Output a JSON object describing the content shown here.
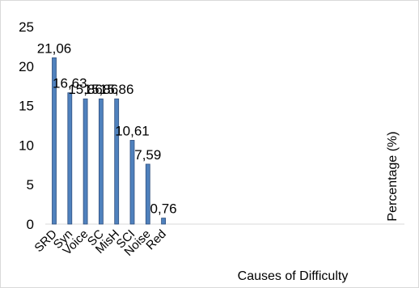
{
  "chart_data": {
    "type": "bar",
    "title": "",
    "xlabel": "Causes of Difficulty",
    "ylabel": "Percentage (%)",
    "categories": [
      "SRD",
      "Syn",
      "Voice",
      "SC",
      "MisH",
      "SCI",
      "Noise",
      "Red"
    ],
    "values": [
      21.06,
      16.63,
      15.86,
      15.86,
      15.86,
      10.61,
      7.59,
      0.76
    ],
    "data_labels": [
      "21,06",
      "16,63",
      "15,86",
      "15,86",
      "15,86",
      "10,61",
      "7,59",
      "0,76"
    ],
    "y_ticks": [
      0,
      5,
      10,
      15,
      20,
      25
    ],
    "ylim": [
      0,
      25
    ],
    "grid": false,
    "legend": "none",
    "bar_color": "#4f81bd",
    "bar_edge_color": "#2f4f7f"
  }
}
